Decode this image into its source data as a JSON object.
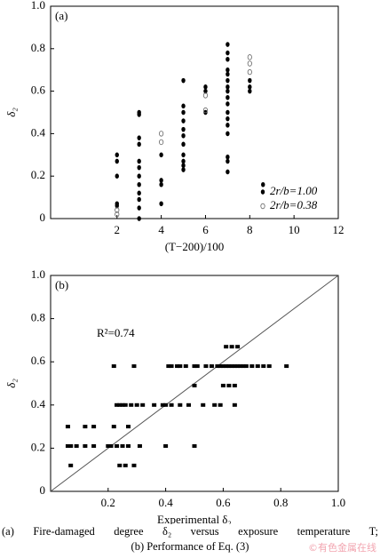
{
  "chart_data": [
    {
      "type": "scatter",
      "panel_label": "(a)",
      "x_label": "(T−200)/100",
      "y_label": "δ₂",
      "xlim": [
        -1,
        12
      ],
      "ylim": [
        0,
        1
      ],
      "xticks": [
        2,
        4,
        6,
        8,
        10,
        12
      ],
      "yticks": [
        0,
        0.2,
        0.4,
        0.6,
        0.8,
        {
          "value": 1,
          "label": "1.0"
        }
      ],
      "legend": "lower right",
      "series": [
        {
          "name": "2r/b=1.00",
          "color": "#000000",
          "marker": "filled-circle",
          "x": [
            2,
            2,
            2,
            2,
            2,
            3,
            3,
            3,
            3,
            3,
            3,
            3,
            3,
            3,
            3,
            3,
            3,
            4,
            4,
            4,
            4,
            5,
            5,
            5,
            5,
            5,
            5,
            5,
            5,
            5,
            5,
            5,
            6,
            6,
            6,
            7,
            7,
            7,
            7,
            7,
            7,
            7,
            7,
            7,
            7,
            7,
            7,
            7,
            7,
            7,
            7,
            7,
            8,
            8,
            8,
            8.6
          ],
          "values": [
            0.3,
            0.27,
            0.2,
            0.07,
            0.06,
            0.5,
            0.49,
            0.38,
            0.35,
            0.27,
            0.24,
            0.2,
            0.16,
            0.12,
            0.09,
            0.05,
            0,
            0.3,
            0.18,
            0.16,
            0.07,
            0.65,
            0.53,
            0.5,
            0.46,
            0.42,
            0.39,
            0.35,
            0.3,
            0.27,
            0.25,
            0.23,
            0.62,
            0.6,
            0.5,
            0.82,
            0.78,
            0.75,
            0.7,
            0.68,
            0.65,
            0.62,
            0.6,
            0.57,
            0.54,
            0.5,
            0.47,
            0.44,
            0.4,
            0.29,
            0.27,
            0.22,
            0.65,
            0.62,
            0.6,
            0.16
          ]
        },
        {
          "name": "2r/b=0.38",
          "color": "#666666",
          "marker": "open-circle",
          "x": [
            2,
            2,
            4,
            4,
            6,
            6,
            8,
            8,
            8
          ],
          "values": [
            0.04,
            0.02,
            0.4,
            0.36,
            0.58,
            0.51,
            0.76,
            0.73,
            0.69
          ]
        }
      ]
    },
    {
      "type": "scatter",
      "panel_label": "(b)",
      "x_label": "Experimental δ₂",
      "y_label": "δ₂",
      "annotation": "R²=0.74",
      "diagonal": true,
      "xlim": [
        0,
        1
      ],
      "ylim": [
        0,
        1
      ],
      "xticks": [
        0.2,
        0.4,
        0.6,
        0.8,
        {
          "value": 1,
          "label": "1.0"
        }
      ],
      "yticks": [
        0,
        0.2,
        0.4,
        0.6,
        0.8,
        {
          "value": 1,
          "label": "1.0"
        }
      ],
      "series": [
        {
          "color": "#000000",
          "marker": "square",
          "x": [
            0.22,
            0.29,
            0.41,
            0.42,
            0.44,
            0.45,
            0.47,
            0.5,
            0.51,
            0.54,
            0.56,
            0.58,
            0.59,
            0.6,
            0.61,
            0.62,
            0.63,
            0.64,
            0.65,
            0.66,
            0.67,
            0.68,
            0.7,
            0.72,
            0.74,
            0.76,
            0.82,
            0.61,
            0.63,
            0.65,
            0.5,
            0.6,
            0.62,
            0.64,
            0.23,
            0.24,
            0.25,
            0.26,
            0.28,
            0.3,
            0.32,
            0.36,
            0.39,
            0.4,
            0.42,
            0.45,
            0.48,
            0.53,
            0.57,
            0.59,
            0.64,
            0.06,
            0.12,
            0.15,
            0.22,
            0.27,
            0.06,
            0.07,
            0.09,
            0.12,
            0.15,
            0.2,
            0.21,
            0.23,
            0.25,
            0.27,
            0.31,
            0.4,
            0.5,
            0.07,
            0.24,
            0.26,
            0.29
          ],
          "values": [
            0.58,
            0.58,
            0.58,
            0.58,
            0.58,
            0.58,
            0.58,
            0.58,
            0.58,
            0.58,
            0.58,
            0.58,
            0.58,
            0.58,
            0.58,
            0.58,
            0.58,
            0.58,
            0.58,
            0.58,
            0.58,
            0.58,
            0.58,
            0.58,
            0.58,
            0.58,
            0.58,
            0.67,
            0.67,
            0.67,
            0.49,
            0.49,
            0.49,
            0.49,
            0.4,
            0.4,
            0.4,
            0.4,
            0.4,
            0.4,
            0.4,
            0.4,
            0.4,
            0.4,
            0.4,
            0.4,
            0.4,
            0.4,
            0.4,
            0.4,
            0.4,
            0.3,
            0.3,
            0.3,
            0.3,
            0.3,
            0.21,
            0.21,
            0.21,
            0.21,
            0.21,
            0.21,
            0.21,
            0.21,
            0.21,
            0.21,
            0.21,
            0.21,
            0.21,
            0.12,
            0.12,
            0.12,
            0.12
          ]
        }
      ]
    }
  ],
  "caption": [
    "(a)  Fire-damaged degree δ₂ versus exposure temperature T;",
    "(b) Performance of Eq. (3)"
  ],
  "watermark": "©有色金属在线"
}
